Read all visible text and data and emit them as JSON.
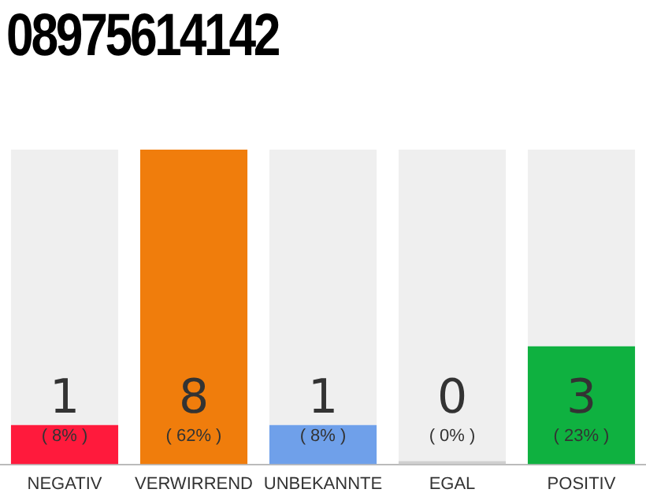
{
  "chart_data": {
    "type": "bar",
    "title": "08975614142",
    "categories": [
      "NEGATIV",
      "VERWIRREND",
      "UNBEKANNTE",
      "EGAL",
      "POSITIV"
    ],
    "stacked": true,
    "series": [
      {
        "colors": [
          "#ff1a3c",
          "#f07d0c",
          "#6fa0ea",
          "#d0d0d0",
          "#0fb140"
        ],
        "values": [
          1,
          8,
          1,
          0,
          3
        ],
        "value_labels": [
          "1\n( 8% )",
          "8\n( 62% )",
          "1\n( 8% )",
          "0\n( 0% )",
          "3\n( 23% )"
        ]
      },
      {
        "color": "#efefef",
        "values": [
          7,
          0,
          7,
          8,
          5
        ]
      }
    ],
    "ylim": [
      0,
      8
    ],
    "tick_labels": "x",
    "grid": false,
    "legend": false
  }
}
